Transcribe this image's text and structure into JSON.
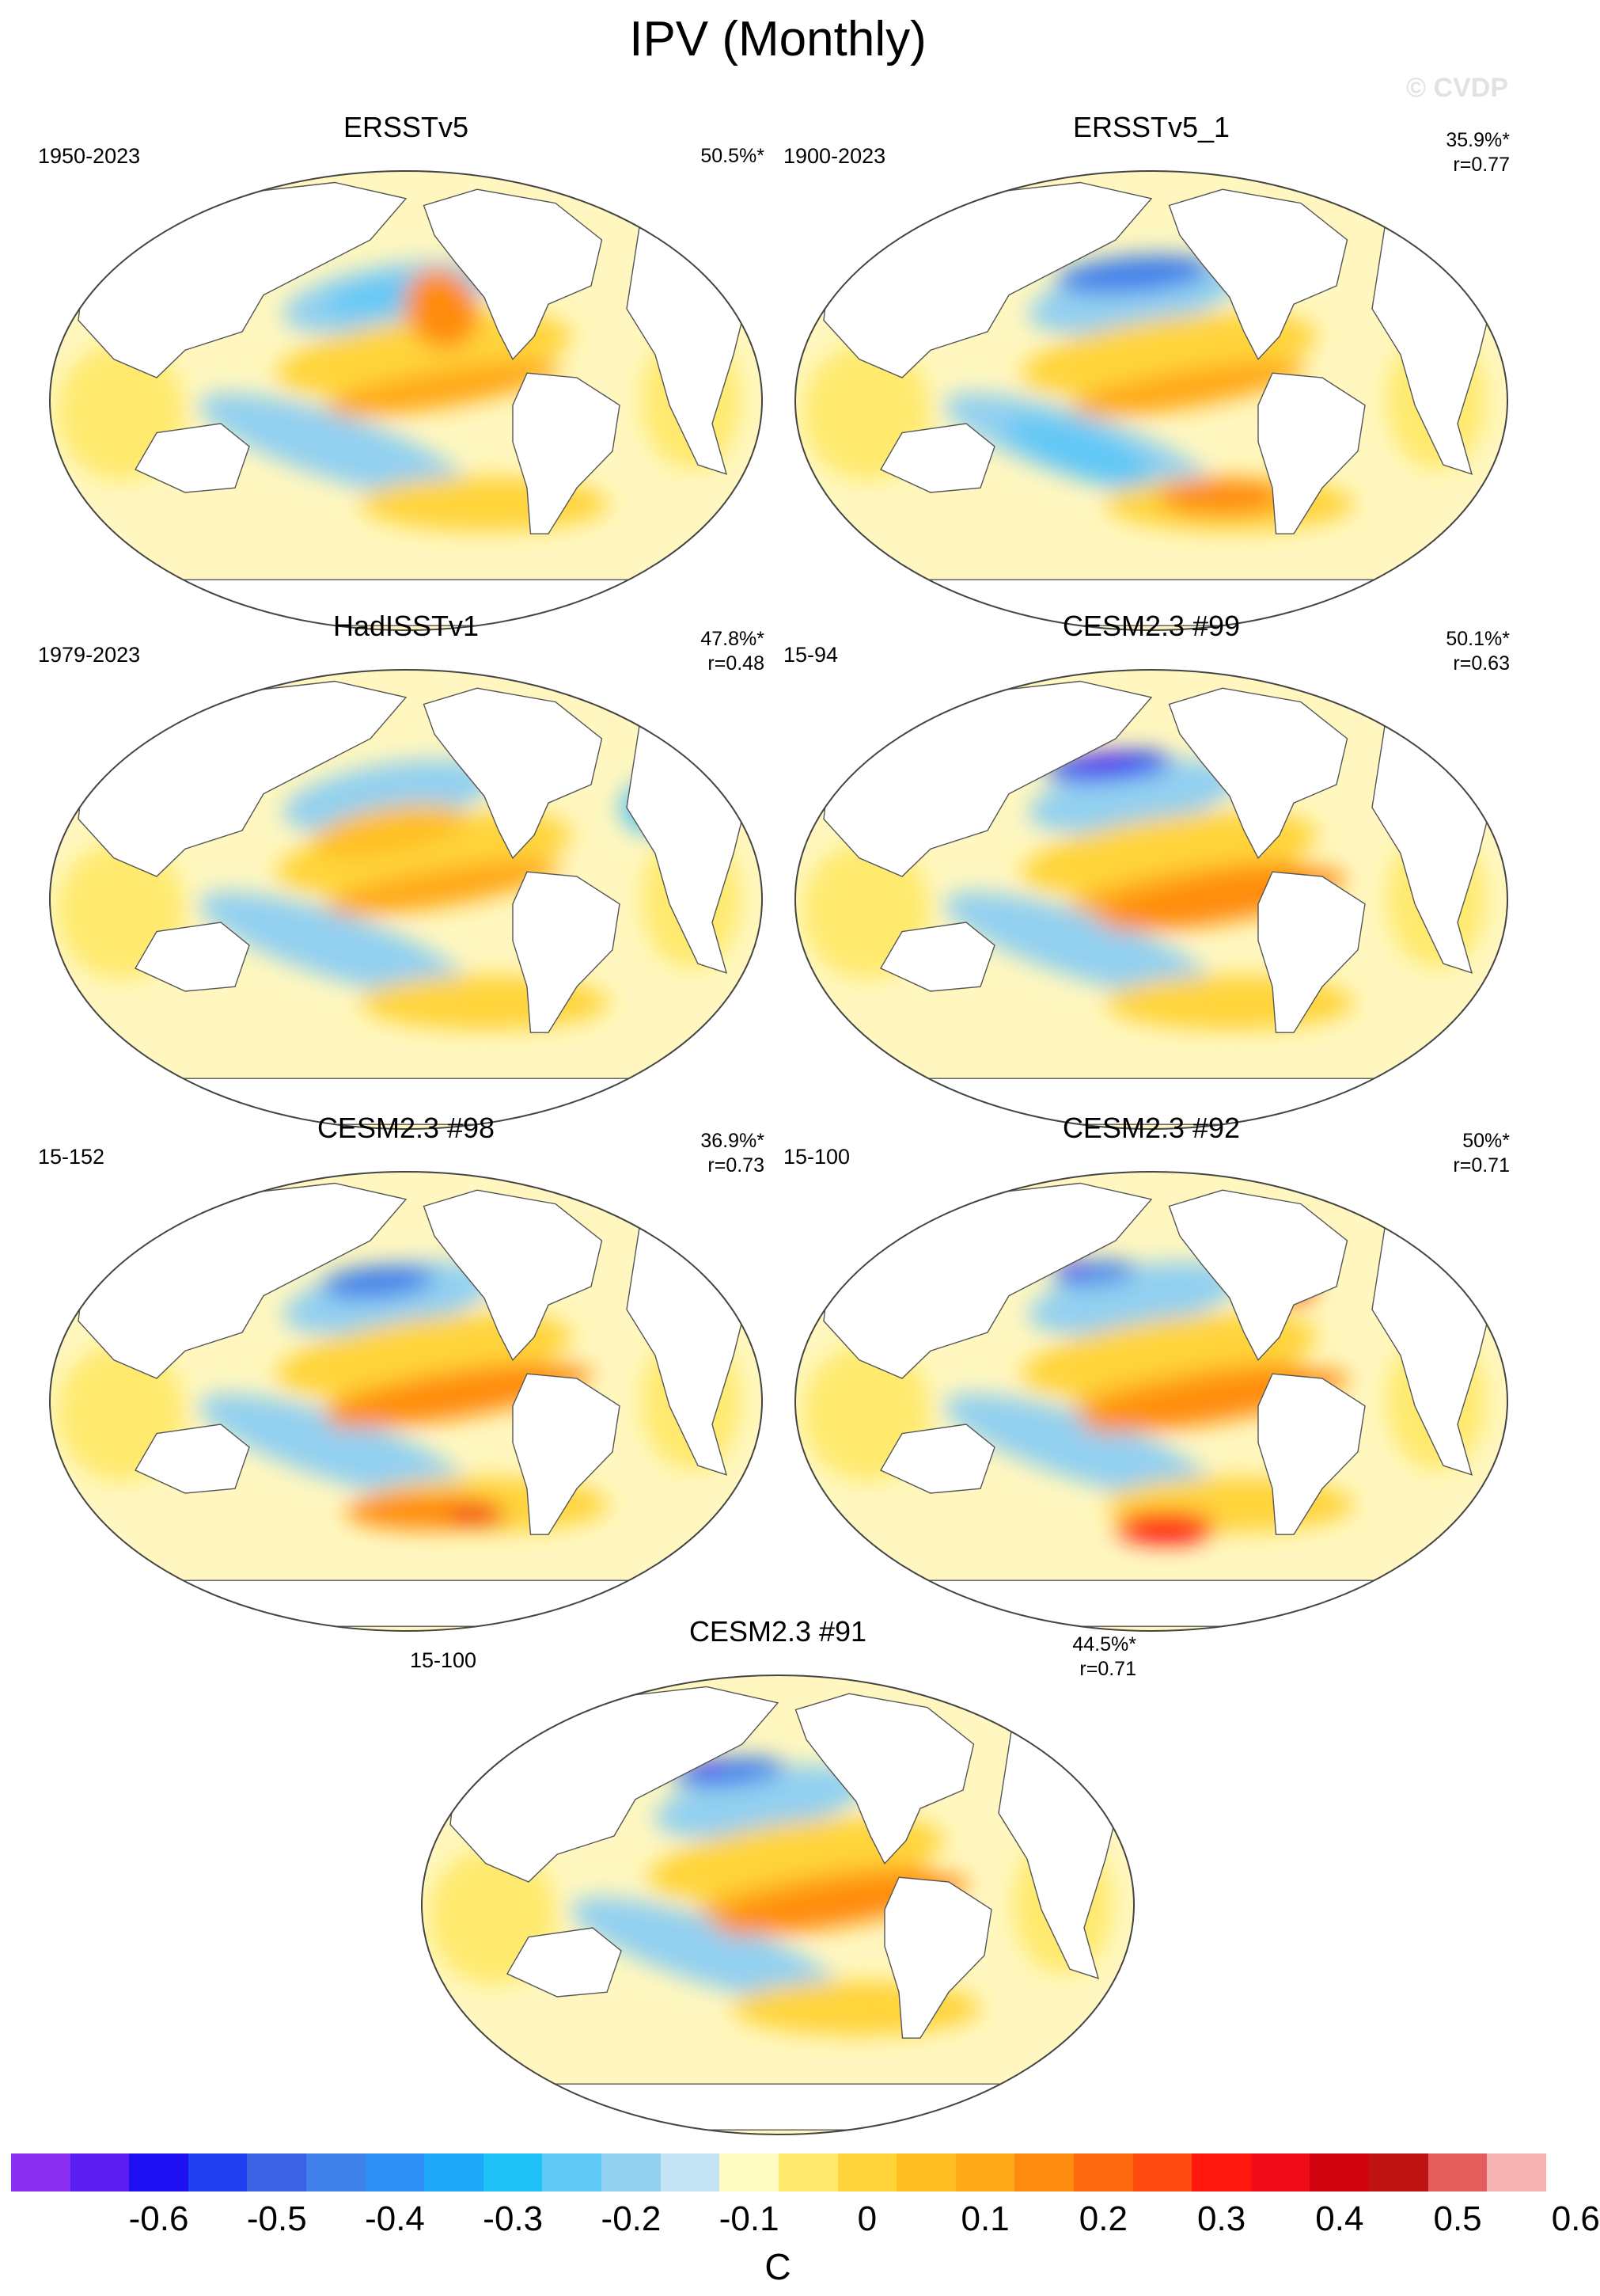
{
  "title": "IPV (Monthly)",
  "watermark": "© CVDP",
  "panels": [
    {
      "name": "ERSSTv5",
      "period": "1950-2023",
      "pct": "50.5%*",
      "r": "",
      "variant": 0
    },
    {
      "name": "ERSSTv5_1",
      "period": "1900-2023",
      "pct": "35.9%*",
      "r": "r=0.77",
      "variant": 1
    },
    {
      "name": "HadISSTv1",
      "period": "1979-2023",
      "pct": "47.8%*",
      "r": "r=0.48",
      "variant": 2
    },
    {
      "name": "CESM2.3 #99",
      "period": "15-94",
      "pct": "50.1%*",
      "r": "r=0.63",
      "variant": 3
    },
    {
      "name": "CESM2.3 #98",
      "period": "15-152",
      "pct": "36.9%*",
      "r": "r=0.73",
      "variant": 4
    },
    {
      "name": "CESM2.3 #92",
      "period": "15-100",
      "pct": "50%*",
      "r": "r=0.71",
      "variant": 5
    },
    {
      "name": "CESM2.3 #91",
      "period": "15-100",
      "pct": "44.5%*",
      "r": "r=0.71",
      "variant": 6
    }
  ],
  "colorbar": {
    "label": "C",
    "ticks": [
      "-0.6",
      "-0.5",
      "-0.4",
      "-0.3",
      "-0.2",
      "-0.1",
      "0",
      "0.1",
      "0.2",
      "0.3",
      "0.4",
      "0.5",
      "0.6"
    ],
    "colors": [
      "#8b2ff2",
      "#5a1ef2",
      "#1e10f2",
      "#1f3ef0",
      "#3a62e3",
      "#3f80ea",
      "#2d90f4",
      "#1fa7f7",
      "#1ec2f7",
      "#60c8f5",
      "#92d0f0",
      "#c4e4f6",
      "#fffcc4",
      "#ffea6e",
      "#ffd43a",
      "#ffbf22",
      "#ffa818",
      "#ff8c10",
      "#ff6a10",
      "#ff4a10",
      "#ff1810",
      "#f00c18",
      "#d00510",
      "#bd1313",
      "#e55c5c",
      "#f7b2b2"
    ],
    "tick_positions": [
      2.5,
      4.5,
      6.5,
      8.5,
      10.5,
      12.5,
      14.5,
      16.5,
      18.5,
      20.5,
      22.5,
      24.5,
      26.5
    ]
  }
}
